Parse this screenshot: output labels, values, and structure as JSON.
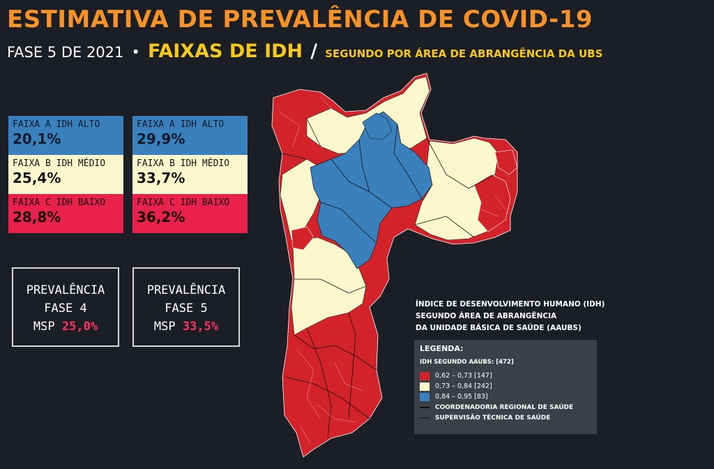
{
  "title": "ESTIMATIVA DE PREVALÊNCIA DE COVID-19",
  "subtitle": {
    "phase": "FASE 5 DE 2021",
    "dot": "•",
    "faixas": "FAIXAS DE IDH",
    "slash": "/",
    "segment": "SEGUNDO POR ÁREA DE ABRANGÊNCIA DA UBS"
  },
  "stacks": [
    {
      "bands": [
        {
          "label": "FAIXA A IDH ALTO",
          "value": "20,1%"
        },
        {
          "label": "FAIXA B IDH MÉDIO",
          "value": "25,4%"
        },
        {
          "label": "FAIXA C IDH BAIXO",
          "value": "28,8%"
        }
      ]
    },
    {
      "bands": [
        {
          "label": "FAIXA A IDH ALTO",
          "value": "29,9%"
        },
        {
          "label": "FAIXA B IDH MÉDIO",
          "value": "33,7%"
        },
        {
          "label": "FAIXA C IDH BAIXO",
          "value": "36,2%"
        }
      ]
    }
  ],
  "prevalence": [
    {
      "line1": "PREVALÊNCIA",
      "line2": "FASE 4",
      "prefix": "MSP",
      "value": "25,0%"
    },
    {
      "line1": "PREVALÊNCIA",
      "line2": "FASE 5",
      "prefix": "MSP",
      "value": "33,5%"
    }
  ],
  "map_description": {
    "line1": "ÍNDICE DE DESENVOLVIMENTO HUMANO (IDH)",
    "line2": "SEGUNDO ÁREA DE ABRANGÊNCIA",
    "line3": "DA UNIDADE BÁSICA DE SAÚDE (AAUBS)"
  },
  "legend": {
    "header": "LEGENDA:",
    "subheader": "IDH SEGUNDO AAUBS: [472]",
    "classes": [
      {
        "label": "0,62  –  0,73 [147]",
        "color": "#d3222a"
      },
      {
        "label": "0,73  –  0,84 [242]",
        "color": "#fbf7cc"
      },
      {
        "label": "0,84  –  0,95 [83]",
        "color": "#3a80bd"
      }
    ],
    "lines": [
      {
        "label": "COORDENADORIA REGIONAL DE SAÚDE"
      },
      {
        "label": "SUPERVISÃO TÉCNICA DE SAÚDE"
      }
    ]
  },
  "colors": {
    "title": "#f5922a",
    "accent": "#f5c91f",
    "low": "#d3222a",
    "mid": "#fbf7cc",
    "high": "#3a80bd",
    "background": "#1c1e26"
  }
}
